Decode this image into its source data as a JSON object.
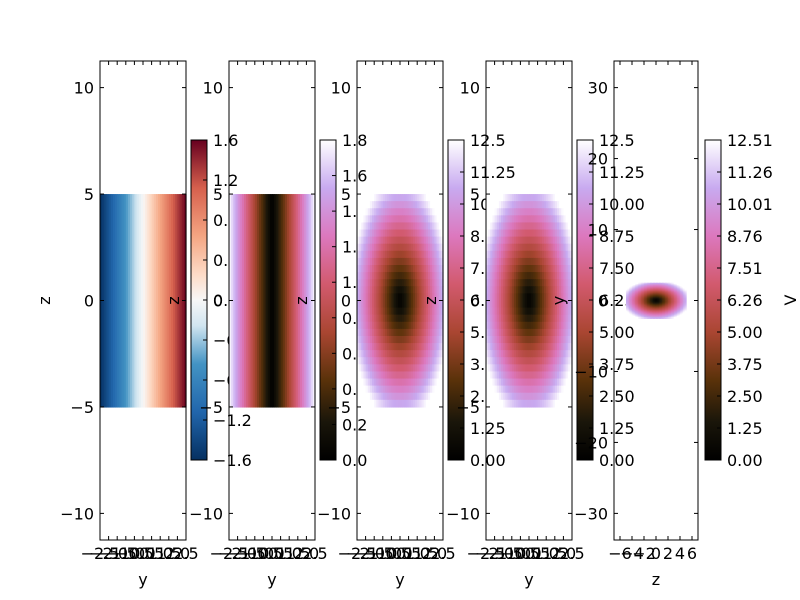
{
  "chart_data": [
    {
      "type": "heatmap",
      "xlabel": "y",
      "ylabel": "z",
      "xlim": [
        -2.5,
        2.5
      ],
      "ylim": [
        -11.25,
        11.25
      ],
      "xticks": [
        "-2.5",
        "-2.0",
        "-1.5",
        "-1.0",
        "-0.5",
        "0.0",
        "0.5",
        "1.0",
        "1.5",
        "2.0",
        "2.5"
      ],
      "yticks": [
        "10",
        "5",
        "0",
        "-5",
        "-10"
      ],
      "extent": {
        "x": [
          -2.5,
          2.5
        ],
        "y": [
          -5,
          5
        ]
      },
      "field": "linear-y",
      "colormap": "RdBu_r",
      "colorbar": {
        "label": "",
        "ticks": [
          "1.6",
          "1.2",
          "0.8",
          "0.4",
          "0.0",
          "-0.4",
          "-0.8",
          "-1.2",
          "-1.6"
        ]
      }
    },
    {
      "type": "heatmap",
      "xlabel": "y",
      "ylabel": "z",
      "xlim": [
        -2.5,
        2.5
      ],
      "ylim": [
        -11.25,
        11.25
      ],
      "xticks": [
        "-2.5",
        "-2.0",
        "-1.5",
        "-1.0",
        "-0.5",
        "0.0",
        "0.5",
        "1.0",
        "1.5",
        "2.0",
        "2.5"
      ],
      "yticks": [
        "10",
        "5",
        "0",
        "-5",
        "-10"
      ],
      "extent": {
        "x": [
          -2.5,
          2.5
        ],
        "y": [
          -5,
          5
        ]
      },
      "field": "abs-y",
      "colormap": "cubehelix",
      "colorbar": {
        "label": "",
        "ticks": [
          "1.8",
          "1.6",
          "1.4",
          "1.2",
          "1.0",
          "0.8",
          "0.6",
          "0.4",
          "0.2",
          "0.0"
        ]
      }
    },
    {
      "type": "heatmap",
      "xlabel": "y",
      "ylabel": "z",
      "xlim": [
        -2.5,
        2.5
      ],
      "ylim": [
        -11.25,
        11.25
      ],
      "xticks": [
        "-2.5",
        "-2.0",
        "-1.5",
        "-1.0",
        "-0.5",
        "0.0",
        "0.5",
        "1.0",
        "1.5",
        "2.0",
        "2.5"
      ],
      "yticks": [
        "10",
        "5",
        "0",
        "-5",
        "-10"
      ],
      "extent": {
        "x": [
          -2.5,
          2.5
        ],
        "y": [
          -5,
          5
        ]
      },
      "field": "radial",
      "colormap": "cubehelix",
      "colorbar": {
        "label": "",
        "ticks": [
          "12.5",
          "11.25",
          "10.00",
          "8.75",
          "7.50",
          "6.25",
          "5.00",
          "3.75",
          "2.50",
          "1.25",
          "0.00"
        ]
      }
    },
    {
      "type": "heatmap",
      "xlabel": "y",
      "ylabel": "z",
      "xlim": [
        -2.5,
        2.5
      ],
      "ylim": [
        -11.25,
        11.25
      ],
      "xticks": [
        "-2.5",
        "-2.0",
        "-1.5",
        "-1.0",
        "-0.5",
        "0.0",
        "0.5",
        "1.0",
        "1.5",
        "2.0",
        "2.5"
      ],
      "yticks": [
        "10",
        "5",
        "0",
        "-5",
        "-10"
      ],
      "extent": {
        "x": [
          -2.5,
          2.5
        ],
        "y": [
          -5,
          5
        ]
      },
      "field": "radial",
      "colormap": "cubehelix",
      "colorbar": {
        "label": "",
        "ticks": [
          "12.5",
          "11.25",
          "10.00",
          "8.75",
          "7.50",
          "6.25",
          "5.00",
          "3.75",
          "2.50",
          "1.25",
          "0.00"
        ]
      }
    },
    {
      "type": "heatmap",
      "xlabel": "z",
      "ylabel": "y",
      "xlim": [
        -7,
        7
      ],
      "ylim": [
        -33.75,
        33.75
      ],
      "xticks": [
        "-6",
        "-4",
        "-2",
        "0",
        "2",
        "4",
        "6"
      ],
      "yticks": [
        "30",
        "20",
        "10",
        "0",
        "-10",
        "-20",
        "-30"
      ],
      "extent": {
        "x": [
          -5,
          5
        ],
        "y": [
          -2.5,
          2.5
        ]
      },
      "field": "radial",
      "colormap": "cubehelix",
      "colorbar": {
        "label": "V",
        "ticks": [
          "12.51",
          "11.26",
          "10.01",
          "8.76",
          "7.51",
          "6.26",
          "5.00",
          "3.75",
          "2.50",
          "1.25",
          "0.00"
        ]
      }
    }
  ]
}
